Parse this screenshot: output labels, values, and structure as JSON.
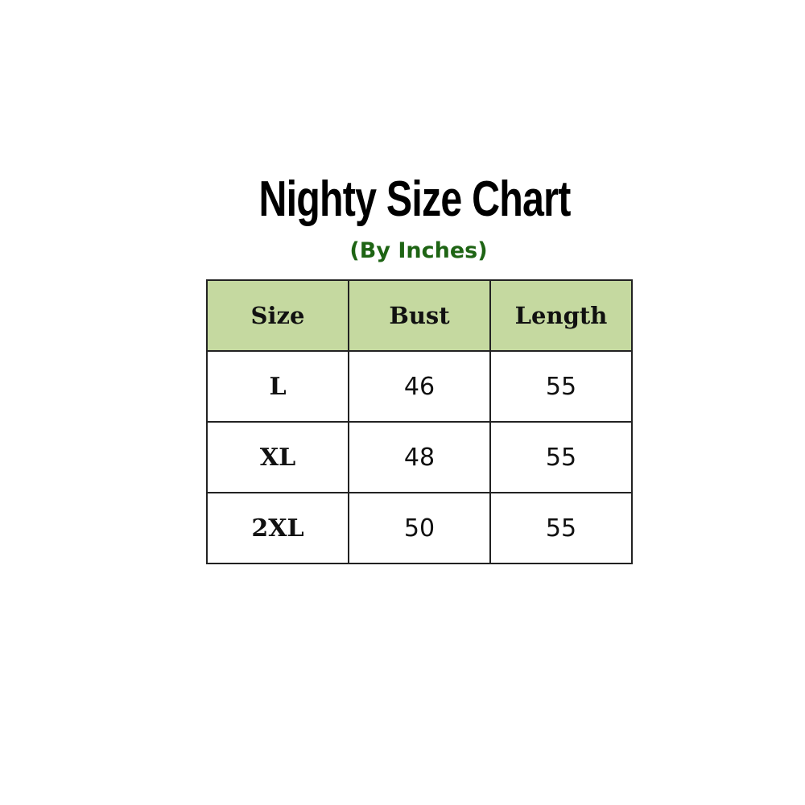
{
  "title": "Nighty Size Chart",
  "subtitle": "(By Inches)",
  "colors": {
    "header_bg": "#c5d9a0",
    "subtitle": "#1e6414"
  },
  "table": {
    "headers": [
      "Size",
      "Bust",
      "Length"
    ],
    "rows": [
      [
        "L",
        "46",
        "55"
      ],
      [
        "XL",
        "48",
        "55"
      ],
      [
        "2XL",
        "50",
        "55"
      ]
    ]
  }
}
